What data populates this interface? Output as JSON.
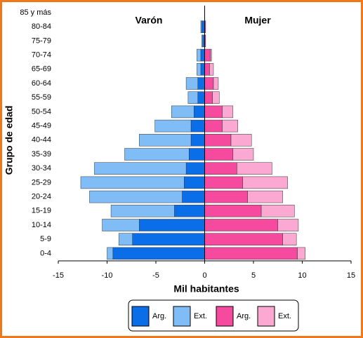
{
  "chart_data": {
    "type": "pyramid",
    "annotations": [
      "Varón",
      "Mujer"
    ],
    "xlabel": "Mil habitantes",
    "ylabel": "Grupo de edad",
    "categories": [
      "85 y más",
      "80-84",
      "75-79",
      "70-74",
      "65-69",
      "60-64",
      "55-59",
      "50-54",
      "45-49",
      "40-44",
      "35-39",
      "30-34",
      "25-29",
      "20-24",
      "15-19",
      "10-14",
      "5-9",
      "0-4"
    ],
    "series": [
      {
        "name": "Arg.",
        "color": "#0a6ee8",
        "values": [
          0,
          -0.3,
          -0.2,
          -0.4,
          -0.4,
          -0.7,
          -0.7,
          -1.1,
          -1.4,
          -1.4,
          -1.6,
          -1.9,
          -2.1,
          -2.3,
          -3.1,
          -6.7,
          -7.4,
          -9.4
        ]
      },
      {
        "name": "Ext.",
        "color": "#80bdf7",
        "values": [
          0,
          -0.1,
          -0.1,
          -0.4,
          -0.4,
          -1.2,
          -1.0,
          -2.3,
          -3.7,
          -5.3,
          -6.6,
          -9.4,
          -10.6,
          -9.5,
          -6.5,
          -3.8,
          -1.4,
          -0.6
        ]
      },
      {
        "name": "Arg.",
        "color": "#f54a9e",
        "values": [
          0,
          0.1,
          0.1,
          0.6,
          0.5,
          0.9,
          0.8,
          1.8,
          1.8,
          2.7,
          2.9,
          3.3,
          3.9,
          4.4,
          5.8,
          7.5,
          8.0,
          9.5
        ]
      },
      {
        "name": "Ext.",
        "color": "#fba8d2",
        "values": [
          0,
          0,
          0,
          0.1,
          0.4,
          0.5,
          0.7,
          1.1,
          1.6,
          2.1,
          2.1,
          3.6,
          4.6,
          3.6,
          3.4,
          2.1,
          1.4,
          0.8
        ]
      }
    ],
    "xlim": [
      -15,
      15
    ],
    "xticks": [
      -15,
      -10,
      -5,
      0,
      5,
      10,
      15
    ]
  }
}
